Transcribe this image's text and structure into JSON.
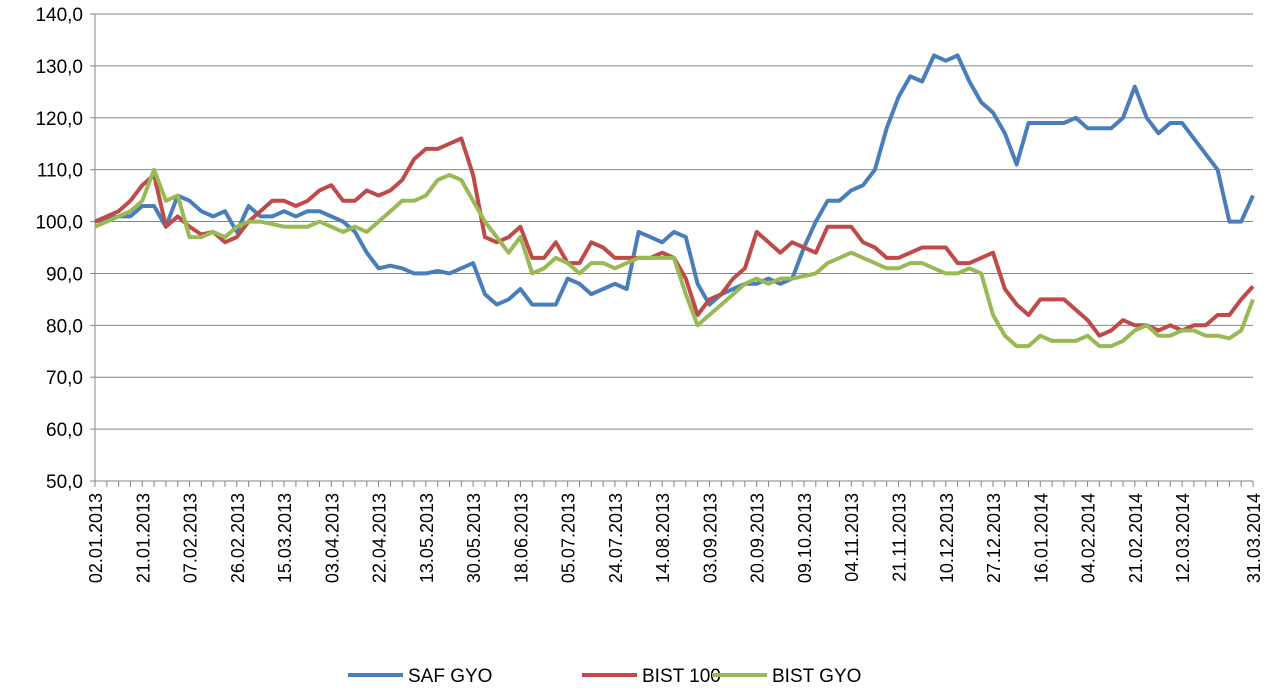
{
  "chart_data": {
    "type": "line",
    "categories": [
      "02.01.2013",
      null,
      null,
      null,
      "21.01.2013",
      null,
      null,
      null,
      "07.02.2013",
      null,
      null,
      null,
      "26.02.2013",
      null,
      null,
      null,
      "15.03.2013",
      null,
      null,
      null,
      "03.04.2013",
      null,
      null,
      null,
      "22.04.2013",
      null,
      null,
      null,
      "13.05.2013",
      null,
      null,
      null,
      "30.05.2013",
      null,
      null,
      null,
      "18.06.2013",
      null,
      null,
      null,
      "05.07.2013",
      null,
      null,
      null,
      "24.07.2013",
      null,
      null,
      null,
      "14.08.2013",
      null,
      null,
      null,
      "03.09.2013",
      null,
      null,
      null,
      "20.09.2013",
      null,
      null,
      null,
      "09.10.2013",
      null,
      null,
      null,
      "04.11.2013",
      null,
      null,
      null,
      "21.11.2013",
      null,
      null,
      null,
      "10.12.2013",
      null,
      null,
      null,
      "27.12.2013",
      null,
      null,
      null,
      "16.01.2014",
      null,
      null,
      null,
      "04.02.2014",
      null,
      null,
      null,
      "21.02.2014",
      null,
      null,
      null,
      "12.03.2014",
      null,
      null,
      null,
      null,
      null,
      "31.03.2014"
    ],
    "series": [
      {
        "name": "SAF GYO",
        "color": "#4a7ebb",
        "values": [
          100,
          100.5,
          101,
          101,
          103,
          103,
          99,
          105,
          104,
          102,
          101,
          102,
          98,
          103,
          101,
          101,
          102,
          101,
          102,
          102,
          101,
          100,
          98,
          94,
          91,
          91.5,
          91,
          90,
          90,
          90.5,
          90,
          91,
          92,
          86,
          84,
          85,
          87,
          84,
          84,
          84,
          89,
          88,
          86,
          87,
          88,
          87,
          98,
          97,
          96,
          98,
          97,
          88,
          84,
          86,
          87,
          88,
          88,
          89,
          88,
          89,
          95,
          100,
          104,
          104,
          106,
          107,
          110,
          118,
          124,
          128,
          127,
          132,
          131,
          132,
          127,
          123,
          121,
          117,
          111,
          119,
          119,
          119,
          119,
          120,
          118,
          118,
          118,
          120,
          126,
          120,
          117,
          119,
          119,
          116,
          113,
          110,
          100,
          100,
          105
        ]
      },
      {
        "name": "BIST 100",
        "color": "#be4b48",
        "values": [
          100,
          101,
          102,
          104,
          107,
          109,
          99,
          101,
          99,
          97.5,
          98,
          96,
          97,
          100,
          102,
          104,
          104,
          103,
          104,
          106,
          107,
          104,
          104,
          106,
          105,
          106,
          108,
          112,
          114,
          114,
          115,
          116,
          109,
          97,
          96,
          97,
          99,
          93,
          93,
          96,
          92,
          92,
          96,
          95,
          93,
          93,
          93,
          93,
          94,
          93,
          89,
          82,
          85,
          86,
          89,
          91,
          98,
          96,
          94,
          96,
          95,
          94,
          99,
          99,
          99,
          96,
          95,
          93,
          93,
          94,
          95,
          95,
          95,
          92,
          92,
          93,
          94,
          87,
          84,
          82,
          85,
          85,
          85,
          83,
          81,
          78,
          79,
          81,
          80,
          80,
          79,
          80,
          79,
          80,
          80,
          82,
          82,
          85,
          87.5
        ]
      },
      {
        "name": "BIST GYO",
        "color": "#98b954",
        "values": [
          99,
          100,
          101,
          102,
          104,
          110,
          104,
          105,
          97,
          97,
          98,
          97,
          99,
          100,
          100,
          99.5,
          99,
          99,
          99,
          100,
          99,
          98,
          99,
          98,
          100,
          102,
          104,
          104,
          105,
          108,
          109,
          108,
          104,
          100,
          97,
          94,
          97,
          90,
          91,
          93,
          92,
          90,
          92,
          92,
          91,
          92,
          93,
          93,
          93,
          93,
          86,
          80,
          82,
          84,
          86,
          88,
          89,
          88,
          89,
          89,
          89.5,
          90,
          92,
          93,
          94,
          93,
          92,
          91,
          91,
          92,
          92,
          91,
          90,
          90,
          91,
          90,
          82,
          78,
          76,
          76,
          78,
          77,
          77,
          77,
          78,
          76,
          76,
          77,
          79,
          80,
          78,
          78,
          79,
          79,
          78,
          78,
          77.5,
          79,
          85
        ]
      }
    ],
    "ylim": [
      50,
      140
    ],
    "yticks": [
      {
        "value": 50,
        "label": "50,0"
      },
      {
        "value": 60,
        "label": "60,0"
      },
      {
        "value": 70,
        "label": "70,0"
      },
      {
        "value": 80,
        "label": "80,0"
      },
      {
        "value": 90,
        "label": "90,0"
      },
      {
        "value": 100,
        "label": "100,0"
      },
      {
        "value": 110,
        "label": "110,0"
      },
      {
        "value": 120,
        "label": "120,0"
      },
      {
        "value": 130,
        "label": "130,0"
      },
      {
        "value": 140,
        "label": "140,0"
      }
    ],
    "grid": true,
    "legend": "bottom"
  }
}
